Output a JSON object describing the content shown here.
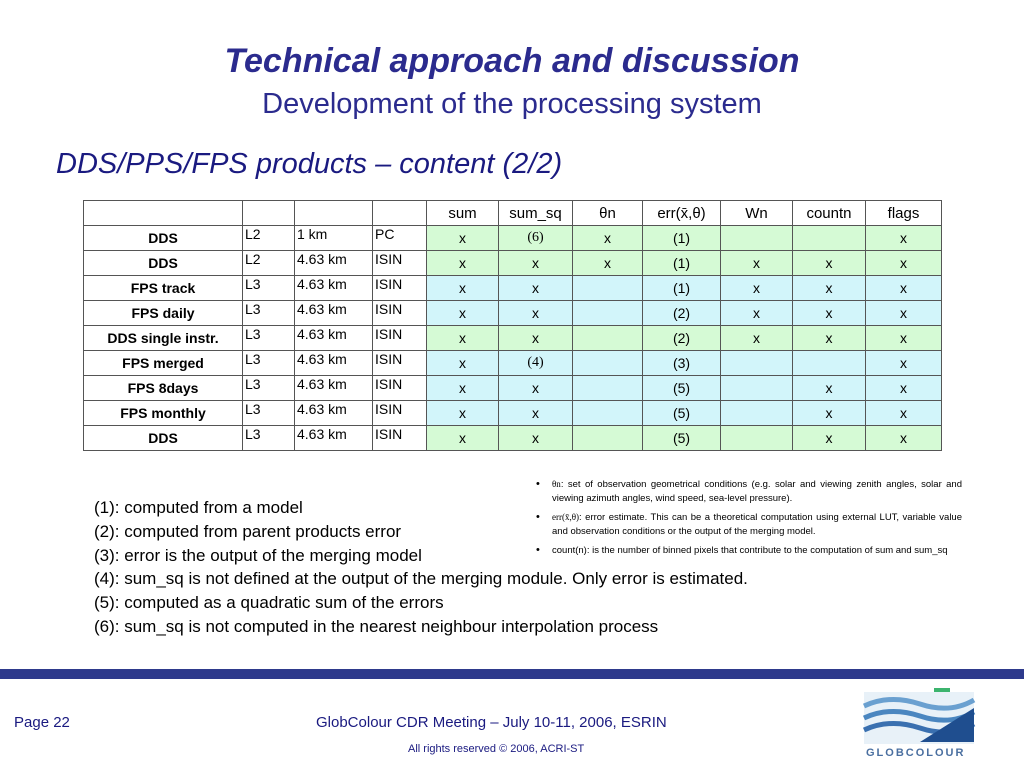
{
  "title": "Technical approach and discussion",
  "subtitle": "Development of the processing system",
  "section": "DDS/PPS/FPS products – content (2/2)",
  "table": {
    "headers": [
      "",
      "",
      "",
      "",
      "sum",
      "sum_sq",
      "θn",
      "err(x̄,θ)",
      "Wn",
      "countn",
      "flags"
    ],
    "rows": [
      {
        "name": "DDS",
        "level": "L2",
        "res": "1 km",
        "grid": "PC",
        "sum": "x",
        "sum_sq": "(6)",
        "theta": "x",
        "err": "(1)",
        "wn": "",
        "count": "",
        "flags": "x",
        "color": "green"
      },
      {
        "name": "DDS",
        "level": "L2",
        "res": "4.63 km",
        "grid": "ISIN",
        "sum": "x",
        "sum_sq": "x",
        "theta": "x",
        "err": "(1)",
        "wn": "x",
        "count": "x",
        "flags": "x",
        "color": "green"
      },
      {
        "name": "FPS track",
        "level": "L3",
        "res": "4.63 km",
        "grid": "ISIN",
        "sum": "x",
        "sum_sq": "x",
        "theta": "",
        "err": "(1)",
        "wn": "x",
        "count": "x",
        "flags": "x",
        "color": "cyan"
      },
      {
        "name": "FPS daily",
        "level": "L3",
        "res": "4.63 km",
        "grid": "ISIN",
        "sum": "x",
        "sum_sq": "x",
        "theta": "",
        "err": "(2)",
        "wn": "x",
        "count": "x",
        "flags": "x",
        "color": "cyan"
      },
      {
        "name": "DDS single instr.",
        "level": "L3",
        "res": "4.63 km",
        "grid": "ISIN",
        "sum": "x",
        "sum_sq": "x",
        "theta": "",
        "err": "(2)",
        "wn": "x",
        "count": "x",
        "flags": "x",
        "color": "green"
      },
      {
        "name": "FPS merged",
        "level": "L3",
        "res": "4.63 km",
        "grid": "ISIN",
        "sum": "x",
        "sum_sq": "(4)",
        "theta": "",
        "err": "(3)",
        "wn": "",
        "count": "",
        "flags": "x",
        "color": "cyan"
      },
      {
        "name": "FPS 8days",
        "level": "L3",
        "res": "4.63 km",
        "grid": "ISIN",
        "sum": "x",
        "sum_sq": "x",
        "theta": "",
        "err": "(5)",
        "wn": "",
        "count": "x",
        "flags": "x",
        "color": "cyan"
      },
      {
        "name": "FPS monthly",
        "level": "L3",
        "res": "4.63 km",
        "grid": "ISIN",
        "sum": "x",
        "sum_sq": "x",
        "theta": "",
        "err": "(5)",
        "wn": "",
        "count": "x",
        "flags": "x",
        "color": "cyan"
      },
      {
        "name": "DDS",
        "level": "L3",
        "res": "4.63 km",
        "grid": "ISIN",
        "sum": "x",
        "sum_sq": "x",
        "theta": "",
        "err": "(5)",
        "wn": "",
        "count": "x",
        "flags": "x",
        "color": "green"
      }
    ]
  },
  "notes": [
    "(1): computed from a model",
    "(2): computed from parent products error",
    "(3): error is the output of the merging model",
    "(4): sum_sq is not defined at the output of the merging module. Only error is estimated.",
    "(5): computed as a quadratic sum of the errors",
    "(6): sum_sq is not computed in the nearest neighbour interpolation process"
  ],
  "definitions": [
    {
      "symbol": "θn",
      "text": ": set of observation geometrical conditions (e.g. solar and viewing zenith angles, solar and viewing azimuth angles, wind speed, sea-level pressure)."
    },
    {
      "symbol": "err(x̄,θ)",
      "text": ": error estimate. This can be a theoretical computation using external LUT, variable value and observation conditions or the output of the merging model."
    },
    {
      "symbol": "",
      "text": "count(n): is the number of binned pixels that contribute to the computation of sum and sum_sq"
    }
  ],
  "footer": {
    "page": "Page 22",
    "meeting": "GlobColour CDR Meeting – July 10-11, 2006, ESRIN",
    "rights": "All rights reserved © 2006, ACRI-ST",
    "logo_text": "GLOBCOLOUR"
  },
  "colors": {
    "title": "#2b2b8e",
    "green_fill": "#d5fad5",
    "cyan_fill": "#d2f5fa",
    "rule": "#2e3a8c"
  },
  "icons": [
    "globcolour-logo"
  ]
}
